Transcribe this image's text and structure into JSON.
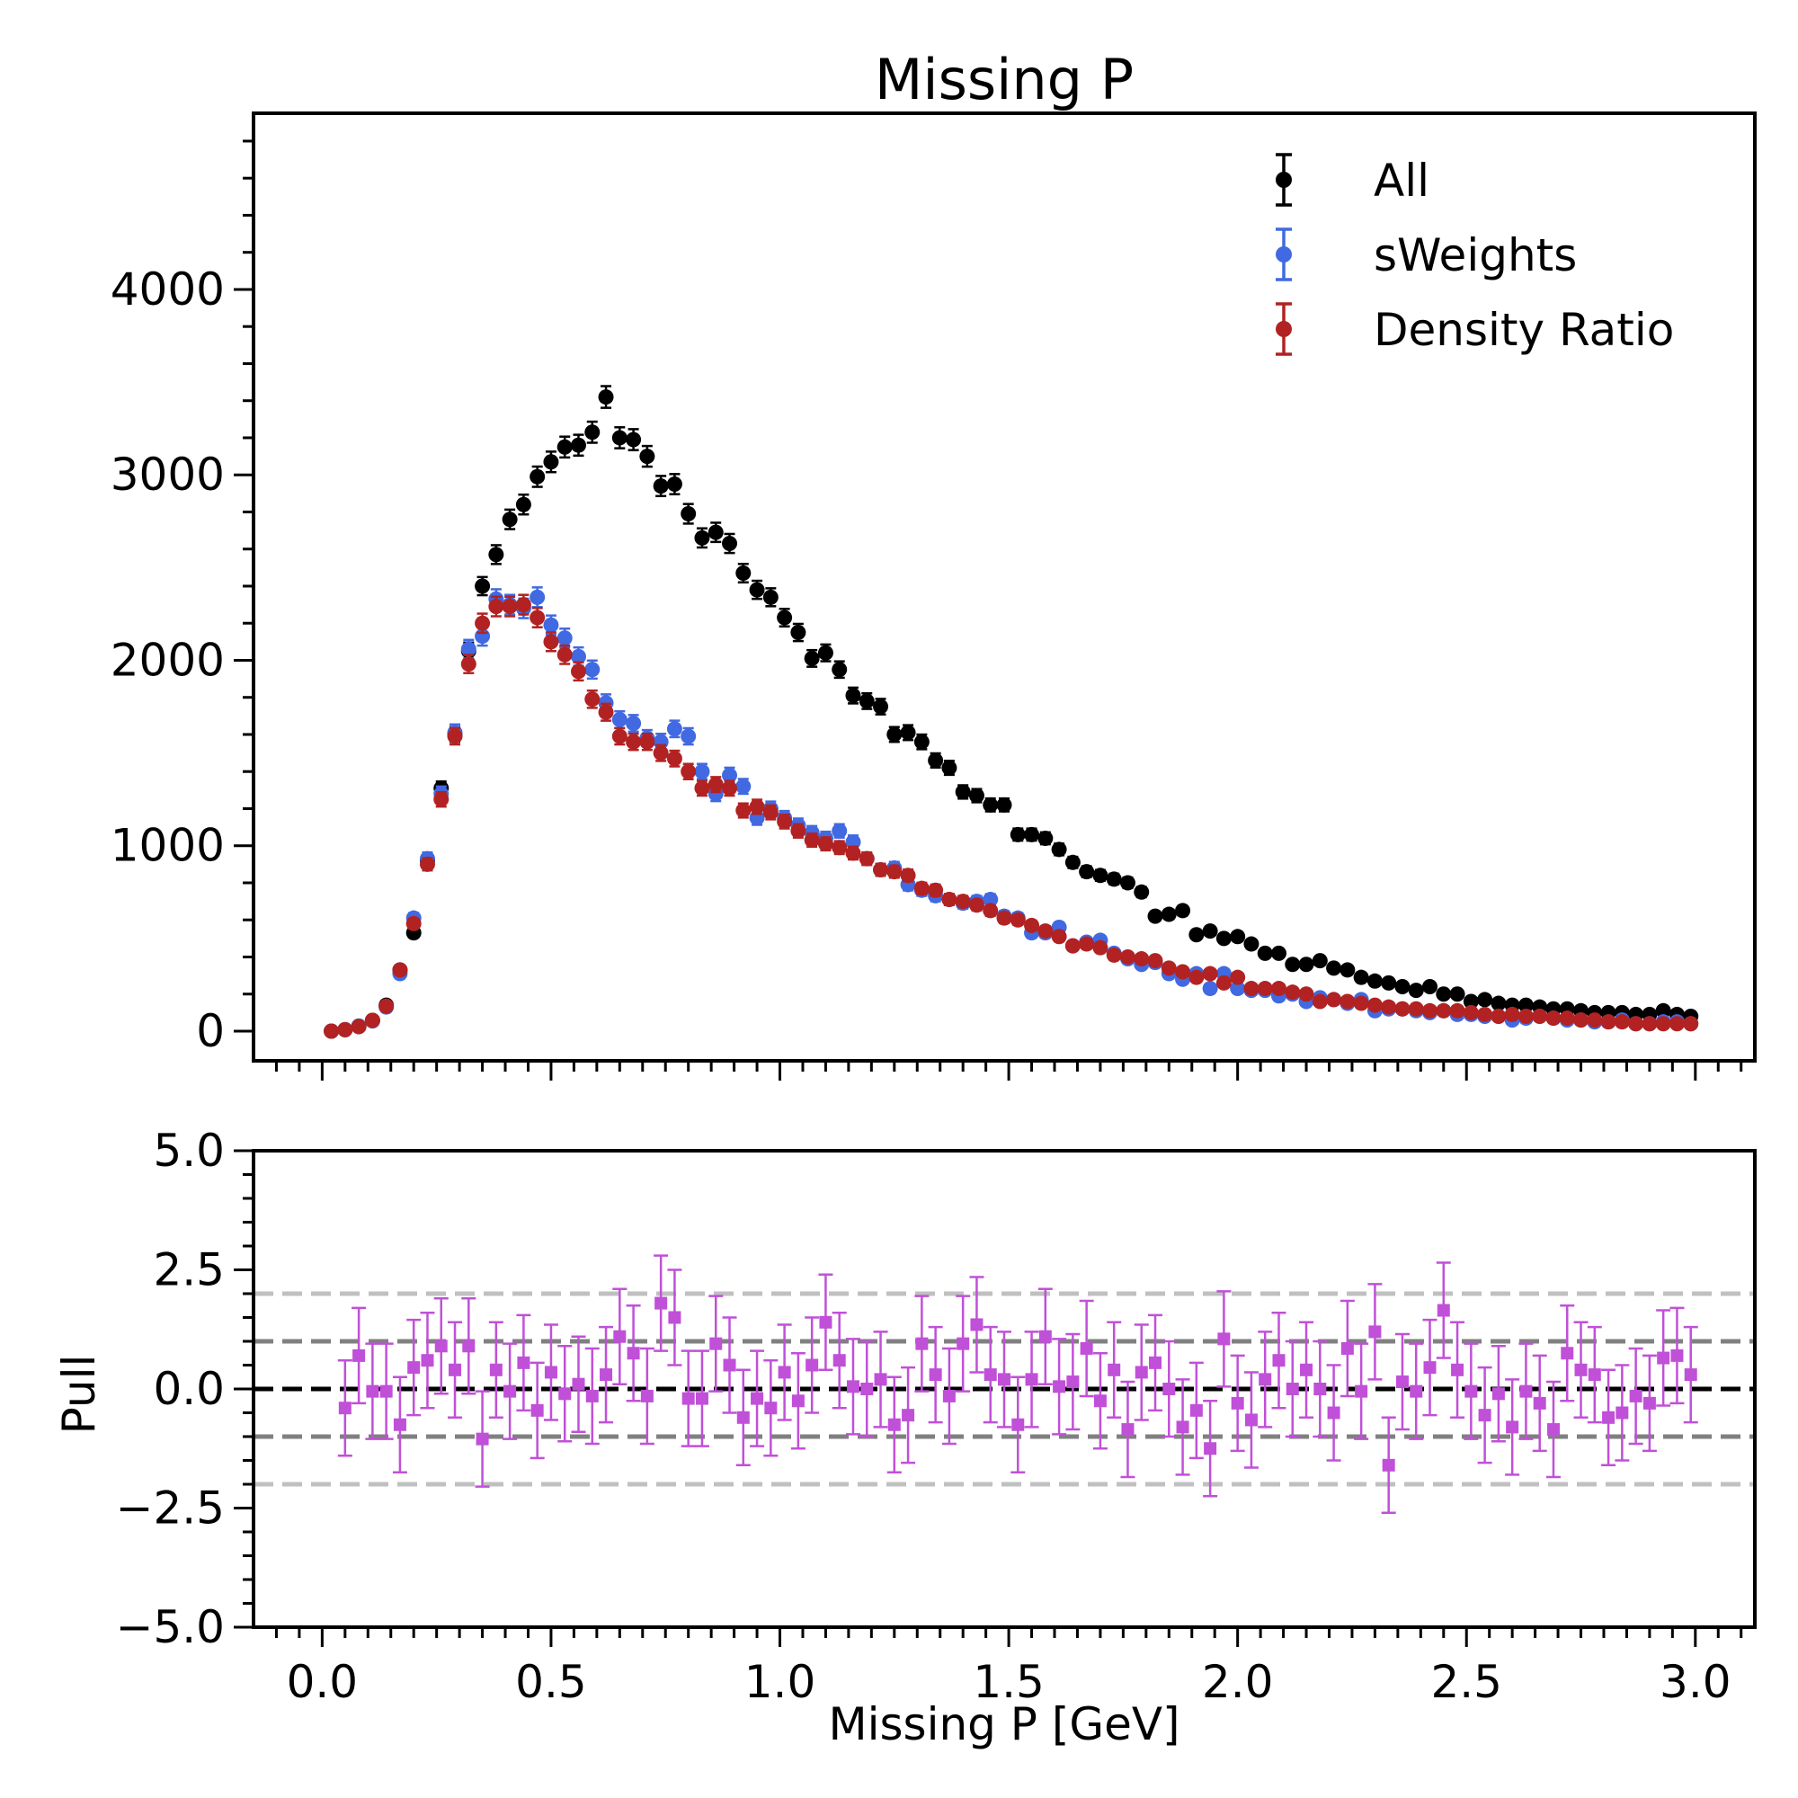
{
  "chart_data": [
    {
      "type": "scatter",
      "title": "Missing P",
      "xlabel": "",
      "ylabel": "",
      "xlim": [
        -0.15,
        3.13
      ],
      "ylim": [
        -160,
        4950
      ],
      "x_ticks": [
        0.0,
        0.5,
        1.0,
        1.5,
        2.0,
        2.5,
        3.0
      ],
      "y_ticks": [
        0,
        1000,
        2000,
        3000,
        4000
      ],
      "y_tick_labels": [
        "0",
        "1000",
        "2000",
        "3000",
        "4000"
      ],
      "legend_position": "top-right",
      "x_start": 0.02,
      "x_step": 0.03,
      "series": [
        {
          "name": "All",
          "color": "#000000",
          "values": [
            0,
            8,
            25,
            58,
            140,
            330,
            530,
            920,
            1310,
            1600,
            2050,
            2400,
            2570,
            2760,
            2840,
            2990,
            3070,
            3150,
            3160,
            3230,
            3420,
            3200,
            3190,
            3100,
            2940,
            2950,
            2790,
            2660,
            2690,
            2630,
            2470,
            2380,
            2340,
            2230,
            2150,
            2010,
            2040,
            1950,
            1810,
            1780,
            1750,
            1600,
            1610,
            1560,
            1460,
            1420,
            1290,
            1270,
            1220,
            1220,
            1060,
            1060,
            1040,
            980,
            910,
            860,
            840,
            820,
            800,
            750,
            620,
            630,
            650,
            520,
            540,
            500,
            510,
            470,
            420,
            420,
            360,
            360,
            380,
            340,
            330,
            290,
            270,
            260,
            240,
            220,
            240,
            200,
            200,
            160,
            170,
            150,
            140,
            140,
            130,
            120,
            120,
            110,
            100,
            100,
            100,
            90,
            90,
            110,
            90,
            80
          ]
        },
        {
          "name": "sWeights",
          "color": "#4169e1",
          "values": [
            0,
            8,
            28,
            55,
            130,
            310,
            610,
            930,
            1280,
            1610,
            2060,
            2130,
            2330,
            2300,
            2280,
            2340,
            2190,
            2120,
            2020,
            1950,
            1770,
            1680,
            1660,
            1580,
            1560,
            1630,
            1590,
            1400,
            1280,
            1380,
            1320,
            1150,
            1200,
            1150,
            1110,
            1070,
            1040,
            1080,
            1020,
            930,
            870,
            880,
            790,
            760,
            730,
            710,
            690,
            700,
            710,
            620,
            610,
            530,
            530,
            560,
            460,
            480,
            490,
            420,
            390,
            360,
            370,
            310,
            280,
            310,
            230,
            310,
            230,
            220,
            220,
            190,
            200,
            160,
            180,
            170,
            150,
            170,
            110,
            120,
            120,
            110,
            100,
            110,
            90,
            90,
            80,
            80,
            60,
            70,
            80,
            70,
            60,
            60,
            50,
            50,
            60,
            40,
            40,
            50,
            50,
            40
          ]
        },
        {
          "name": "Density Ratio",
          "color": "#b22222",
          "values": [
            0,
            8,
            25,
            58,
            135,
            330,
            580,
            900,
            1250,
            1590,
            1980,
            2200,
            2290,
            2290,
            2300,
            2230,
            2100,
            2030,
            1940,
            1790,
            1720,
            1590,
            1560,
            1560,
            1500,
            1470,
            1400,
            1310,
            1330,
            1310,
            1190,
            1210,
            1180,
            1130,
            1080,
            1030,
            1010,
            990,
            960,
            930,
            870,
            860,
            840,
            770,
            760,
            710,
            700,
            680,
            650,
            610,
            600,
            570,
            540,
            510,
            460,
            470,
            450,
            410,
            400,
            390,
            380,
            340,
            320,
            290,
            310,
            260,
            290,
            230,
            230,
            230,
            210,
            200,
            160,
            170,
            160,
            150,
            140,
            130,
            120,
            120,
            110,
            110,
            110,
            100,
            90,
            80,
            90,
            80,
            80,
            70,
            70,
            60,
            60,
            50,
            50,
            40,
            40,
            40,
            40,
            40
          ]
        }
      ]
    },
    {
      "type": "scatter",
      "title": "",
      "xlabel": "Missing P [GeV]",
      "ylabel": "Pull",
      "xlim": [
        -0.15,
        3.13
      ],
      "ylim": [
        -5.0,
        5.0
      ],
      "x_ticks": [
        0.0,
        0.5,
        1.0,
        1.5,
        2.0,
        2.5,
        3.0
      ],
      "x_tick_labels": [
        "0.0",
        "0.5",
        "1.0",
        "1.5",
        "2.0",
        "2.5",
        "3.0"
      ],
      "y_ticks": [
        5.0,
        2.5,
        0.0,
        -2.5,
        -5.0
      ],
      "y_tick_labels": [
        "5.0",
        "2.5",
        "0.0",
        "−2.5",
        "−5.0"
      ],
      "reference_lines": [
        {
          "y": 0,
          "color": "#000000"
        },
        {
          "y": 1,
          "color": "#808080"
        },
        {
          "y": -1,
          "color": "#808080"
        },
        {
          "y": 2,
          "color": "#c0c0c0"
        },
        {
          "y": -2,
          "color": "#c0c0c0"
        }
      ],
      "series": [
        {
          "name": "Pull",
          "color": "#c050d8",
          "x_start": 0.05,
          "x_step": 0.03,
          "error": 1.0,
          "values": [
            -0.4,
            0.7,
            -0.05,
            -0.05,
            -0.75,
            0.45,
            0.6,
            0.9,
            0.4,
            0.9,
            -1.05,
            0.4,
            -0.05,
            0.55,
            -0.45,
            0.35,
            -0.1,
            0.1,
            -0.15,
            0.3,
            1.1,
            0.75,
            -0.15,
            1.8,
            1.5,
            -0.2,
            -0.2,
            0.95,
            0.5,
            -0.6,
            -0.2,
            -0.4,
            0.35,
            -0.25,
            0.5,
            1.4,
            0.6,
            0.05,
            0.0,
            0.2,
            -0.75,
            -0.55,
            0.95,
            0.3,
            -0.15,
            0.95,
            1.35,
            0.3,
            0.2,
            -0.75,
            0.2,
            1.1,
            0.05,
            0.15,
            0.85,
            -0.25,
            0.4,
            -0.85,
            0.35,
            0.55,
            0.0,
            -0.8,
            -0.45,
            -1.25,
            1.05,
            -0.3,
            -0.65,
            0.2,
            0.6,
            0.0,
            0.4,
            0.0,
            -0.5,
            0.85,
            -0.05,
            1.2,
            -1.6,
            0.15,
            -0.05,
            0.45,
            1.65,
            0.4,
            -0.05,
            -0.55,
            -0.1,
            -0.8,
            -0.05,
            -0.3,
            -0.85,
            0.75,
            0.4,
            0.3,
            -0.6,
            -0.5,
            -0.15,
            -0.3,
            0.65,
            0.7,
            0.3
          ]
        }
      ]
    }
  ],
  "legend": {
    "entries": [
      "All",
      "sWeights",
      "Density Ratio"
    ]
  }
}
